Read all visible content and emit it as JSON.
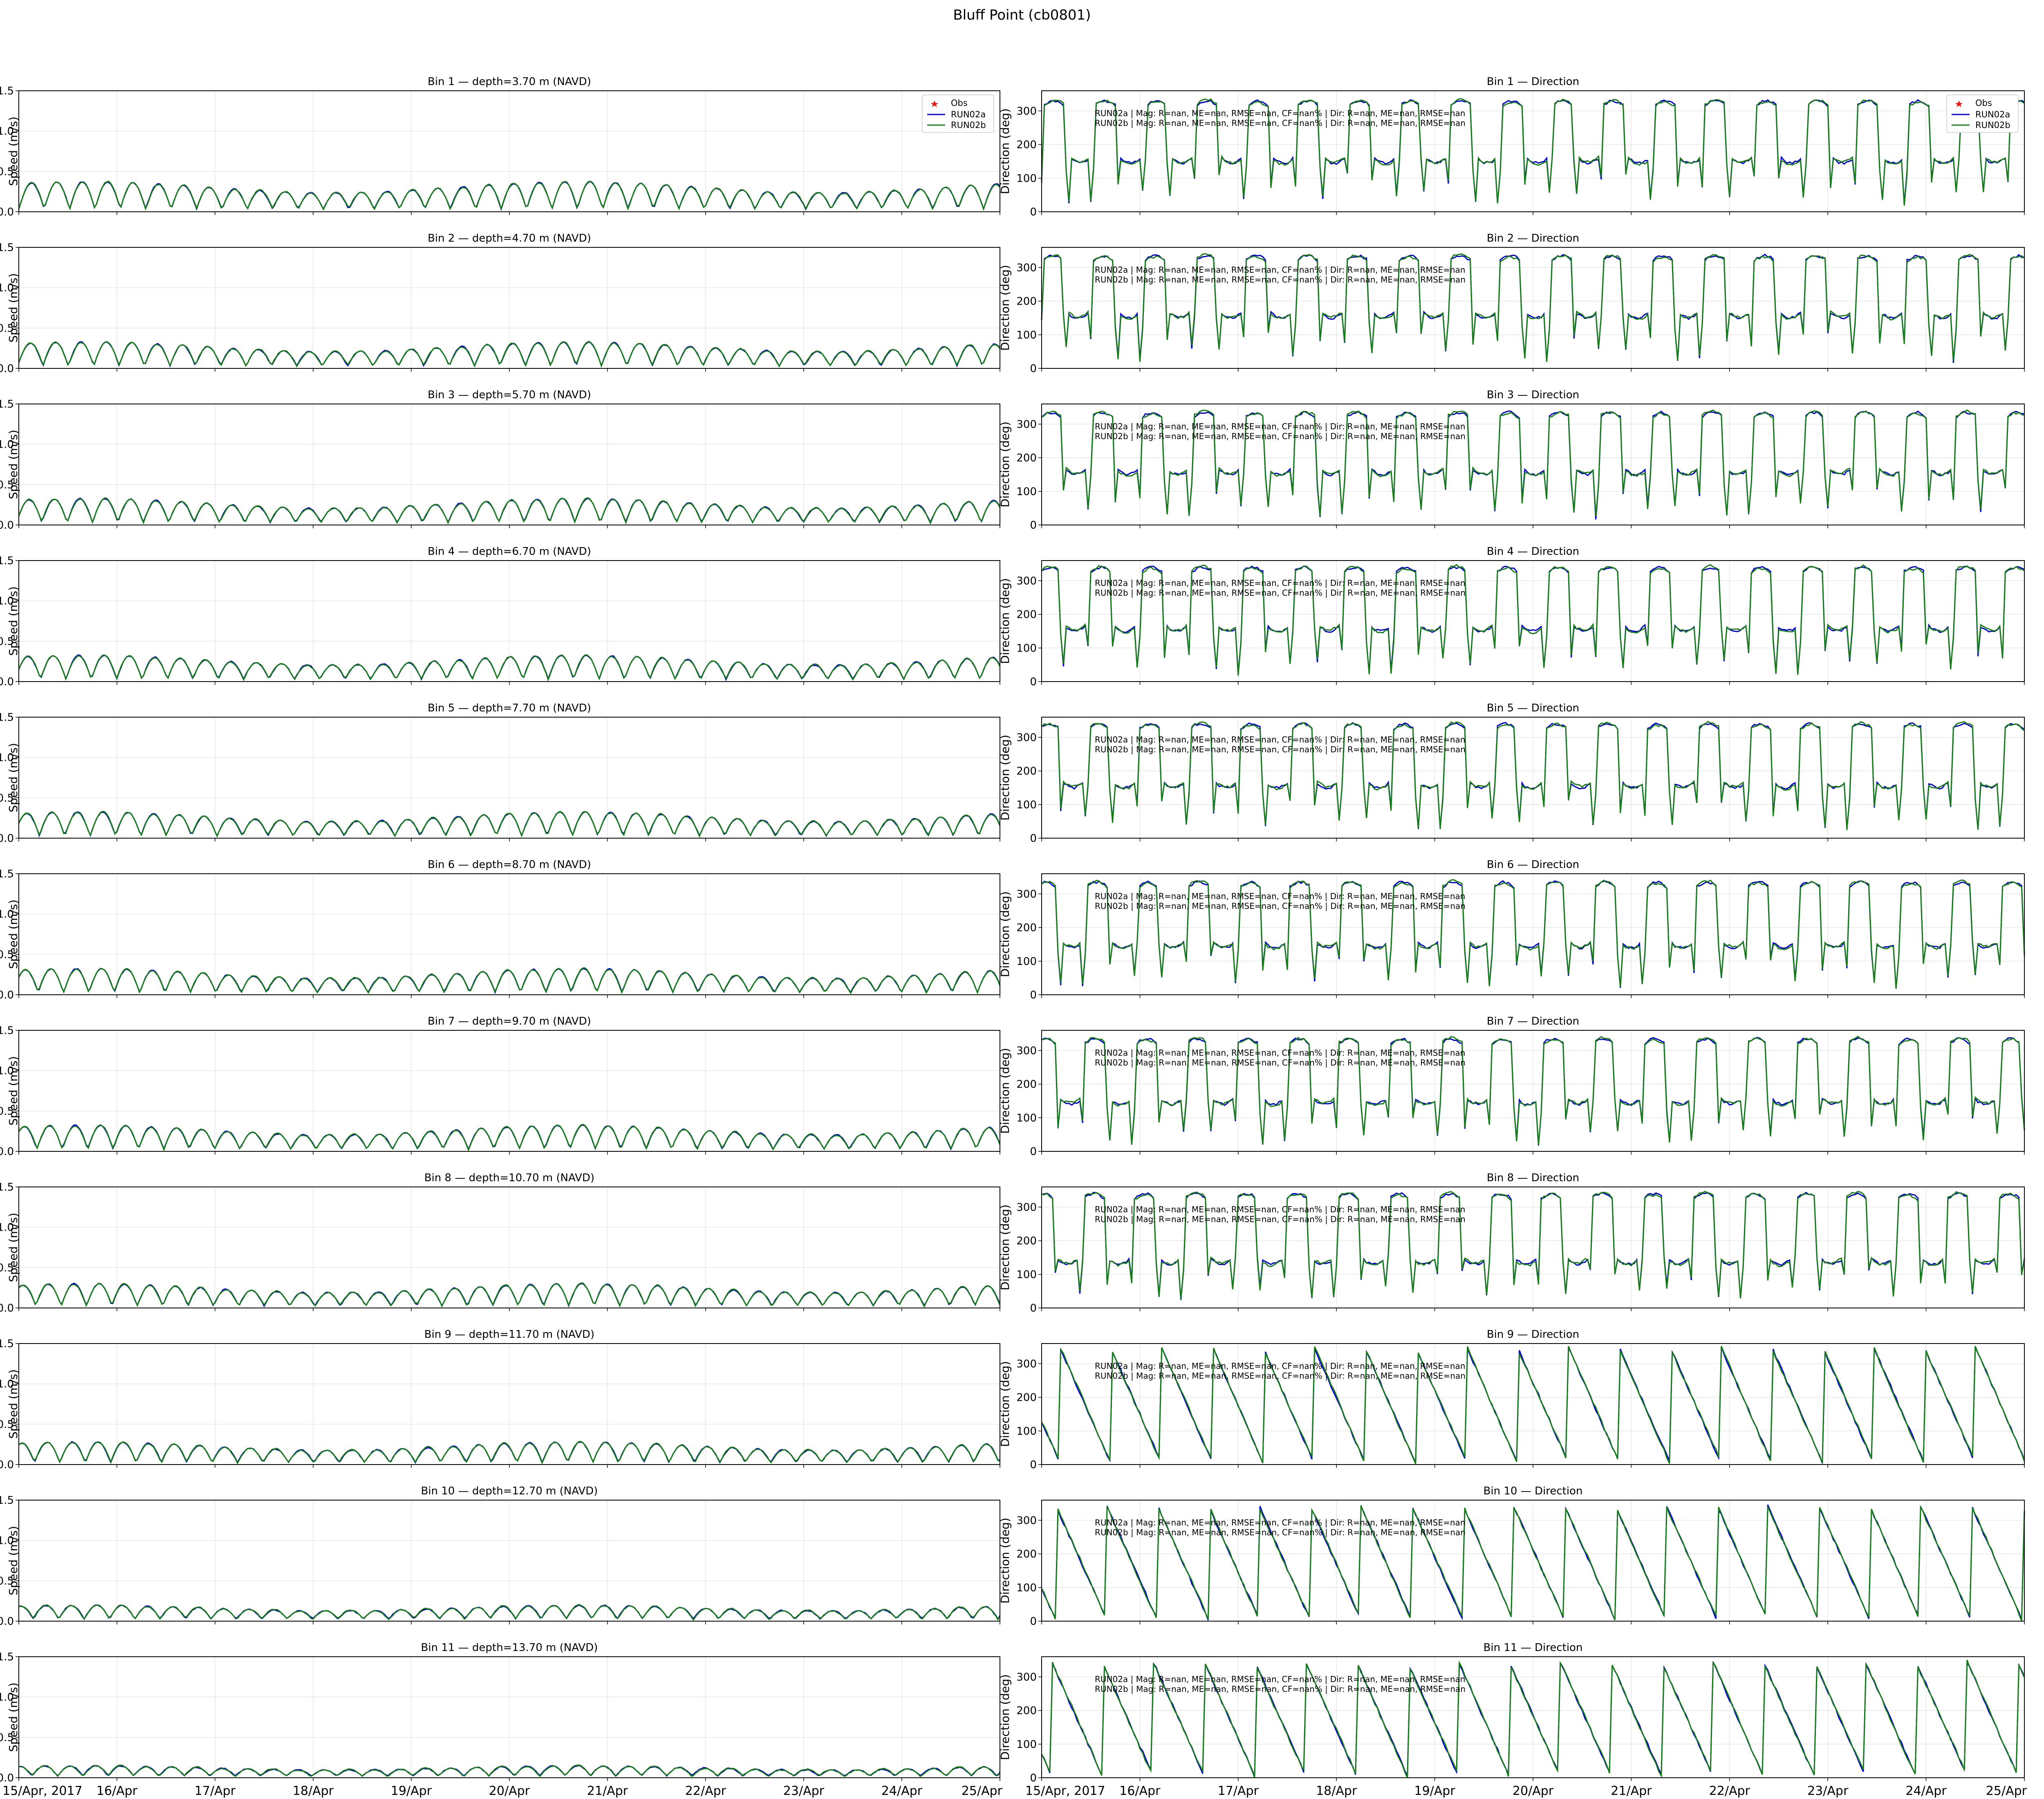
{
  "figure": {
    "title": "Bluff Point (cb0801)",
    "colors": {
      "obs": "#e31a1c",
      "run02a": "#0000cc",
      "run02b": "#1a7d1a",
      "grid": "#e6e6e6",
      "axis": "#000000"
    }
  },
  "chart_data": {
    "type": "line",
    "x_range": [
      "2017-04-15T00:00",
      "2017-04-25T00:00"
    ],
    "x_tick_labels": [
      "15/Apr, 2017",
      "16/Apr",
      "17/Apr",
      "18/Apr",
      "19/Apr",
      "20/Apr",
      "21/Apr",
      "22/Apr",
      "23/Apr",
      "24/Apr",
      "25/Apr"
    ],
    "legend": [
      "Obs",
      "RUN02a",
      "RUN02b"
    ],
    "stats_lines": [
      "RUN02a | Mag: R=nan, ME=nan, RMSE=nan, CF=nan% | Dir: R=nan, ME=nan, RMSE=nan",
      "RUN02b | Mag: R=nan, ME=nan, RMSE=nan, CF=nan% | Dir: R=nan, ME=nan, RMSE=nan"
    ],
    "speed_axis": {
      "ylabel": "Speed (m/s)",
      "ylim": [
        0,
        1.5
      ],
      "ticks": [
        "0.0",
        "0.5",
        "1.0",
        "1.5"
      ]
    },
    "direction_axis": {
      "ylabel": "Direction (deg)",
      "ylim": [
        0,
        360
      ],
      "ticks": [
        "0",
        "100",
        "200",
        "300"
      ]
    },
    "speed_panels": [
      {
        "title": "Bin 1 — depth=3.70 m (NAVD)",
        "mean_speed": 0.22,
        "amplitude": 0.16
      },
      {
        "title": "Bin 2 — depth=4.70 m (NAVD)",
        "mean_speed": 0.2,
        "amplitude": 0.14
      },
      {
        "title": "Bin 3 — depth=5.70 m (NAVD)",
        "mean_speed": 0.2,
        "amplitude": 0.14
      },
      {
        "title": "Bin 4 — depth=6.70 m (NAVD)",
        "mean_speed": 0.19,
        "amplitude": 0.14
      },
      {
        "title": "Bin 5 — depth=7.70 m (NAVD)",
        "mean_speed": 0.19,
        "amplitude": 0.14
      },
      {
        "title": "Bin 6 — depth=8.70 m (NAVD)",
        "mean_speed": 0.18,
        "amplitude": 0.14
      },
      {
        "title": "Bin 7 — depth=9.70 m (NAVD)",
        "mean_speed": 0.18,
        "amplitude": 0.14
      },
      {
        "title": "Bin 8 — depth=10.70 m (NAVD)",
        "mean_speed": 0.17,
        "amplitude": 0.13
      },
      {
        "title": "Bin 9 — depth=11.70 m (NAVD)",
        "mean_speed": 0.17,
        "amplitude": 0.12
      },
      {
        "title": "Bin 10 — depth=12.70 m (NAVD)",
        "mean_speed": 0.18,
        "amplitude": 0.08
      },
      {
        "title": "Bin 11 — depth=13.70 m (NAVD)",
        "mean_speed": 0.14,
        "amplitude": 0.06
      }
    ],
    "direction_panels": [
      {
        "title": "Bin 1 — Direction",
        "flood_deg": 330,
        "ebb_deg": 165
      },
      {
        "title": "Bin 2 — Direction",
        "flood_deg": 335,
        "ebb_deg": 170
      },
      {
        "title": "Bin 3 — Direction",
        "flood_deg": 335,
        "ebb_deg": 170
      },
      {
        "title": "Bin 4 — Direction",
        "flood_deg": 340,
        "ebb_deg": 170
      },
      {
        "title": "Bin 5 — Direction",
        "flood_deg": 340,
        "ebb_deg": 170
      },
      {
        "title": "Bin 6 — Direction",
        "flood_deg": 335,
        "ebb_deg": 160
      },
      {
        "title": "Bin 7 — Direction",
        "flood_deg": 335,
        "ebb_deg": 160
      },
      {
        "title": "Bin 8 — Direction",
        "flood_deg": 340,
        "ebb_deg": 150
      },
      {
        "title": "Bin 9 — Direction",
        "flood_deg": 350,
        "ebb_deg": 120
      },
      {
        "title": "Bin 10 — Direction",
        "flood_deg": 345,
        "ebb_deg": 110
      },
      {
        "title": "Bin 11 — Direction",
        "flood_deg": 345,
        "ebb_deg": 100
      }
    ],
    "grid": true,
    "legend_placement": "upper right"
  }
}
